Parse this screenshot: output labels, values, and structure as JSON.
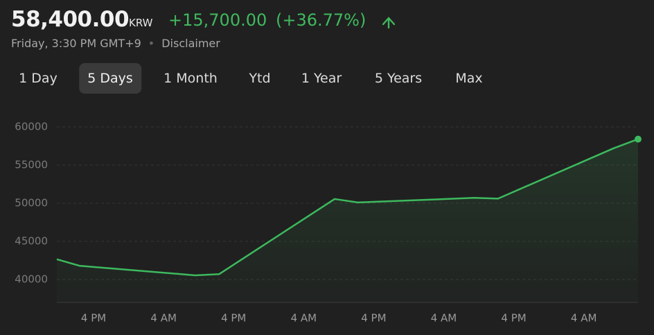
{
  "header": {
    "price": "58,400.00",
    "currency": "KRW",
    "change": "+15,700.00",
    "change_percent": "(+36.77%)",
    "timestamp": "Friday, 3:30 PM GMT+9",
    "separator": "•",
    "disclaimer": "Disclaimer"
  },
  "tabs": [
    "1 Day",
    "5 Days",
    "1 Month",
    "Ytd",
    "1 Year",
    "5 Years",
    "Max"
  ],
  "selected_tab": "5 Days",
  "chart_data": {
    "type": "line",
    "x": [
      -0.3,
      3.6,
      23.4,
      27.5,
      47.3,
      51.3,
      71.2,
      75.3,
      95.1,
      99.3
    ],
    "series": [
      {
        "color": "#3dba5e",
        "values": [
          42650,
          41800,
          40550,
          40700,
          50550,
          50100,
          50700,
          50600,
          57200,
          58400
        ]
      }
    ],
    "xlim": [
      -0.3,
      99.3
    ],
    "xticks": [
      {
        "value": 6,
        "label": "4 PM"
      },
      {
        "value": 18,
        "label": "4 AM"
      },
      {
        "value": 30,
        "label": "4 PM"
      },
      {
        "value": 42,
        "label": "4 AM"
      },
      {
        "value": 54,
        "label": "4 PM"
      },
      {
        "value": 66,
        "label": "4 AM"
      },
      {
        "value": 78,
        "label": "4 PM"
      },
      {
        "value": 90,
        "label": "4 AM"
      }
    ],
    "ylim": [
      37000,
      60000
    ],
    "yticks": [
      40000,
      45000,
      50000,
      55000,
      60000
    ],
    "grid": true
  }
}
